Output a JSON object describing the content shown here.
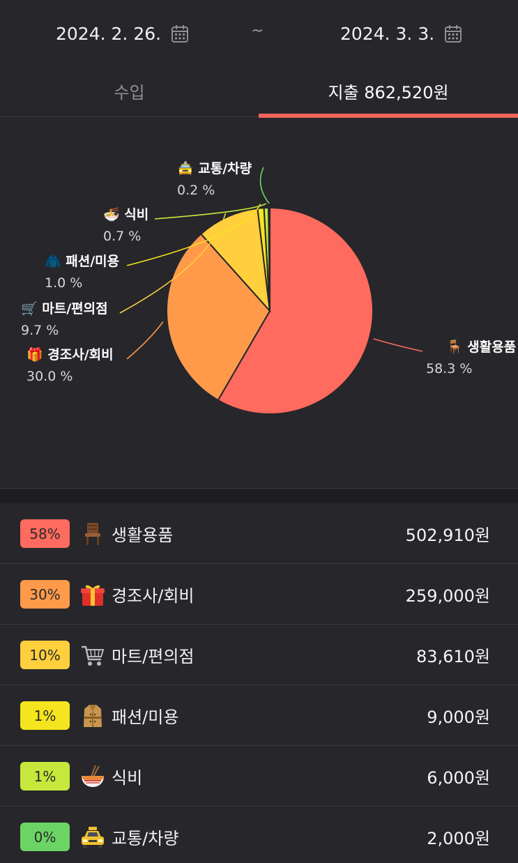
{
  "date_range": {
    "start": "2024. 2. 26.",
    "separator": "~",
    "end": "2024. 3. 3.",
    "icon": "calendar-icon"
  },
  "tabs": {
    "income_label": "수입",
    "expense_label": "지출 862,520원",
    "active": "expense"
  },
  "colors": {
    "background": "#26262b",
    "accent": "#f0645a"
  },
  "chart_data": {
    "type": "pie",
    "slices": [
      {
        "label": "생활용품",
        "value": 58.3,
        "pct_text": "58.3 %",
        "color": "#ff6b5e",
        "icon": "chair-icon"
      },
      {
        "label": "경조사/회비",
        "value": 30.0,
        "pct_text": "30.0 %",
        "color": "#ff9a4a",
        "icon": "gift-icon"
      },
      {
        "label": "마트/편의점",
        "value": 9.7,
        "pct_text": "9.7 %",
        "color": "#ffcf3d",
        "icon": "cart-icon"
      },
      {
        "label": "패션/미용",
        "value": 1.0,
        "pct_text": "1.0 %",
        "color": "#f5e51e",
        "icon": "coat-icon"
      },
      {
        "label": "식비",
        "value": 0.7,
        "pct_text": "0.7 %",
        "color": "#c6e83c",
        "icon": "noodle-bowl-icon"
      },
      {
        "label": "교통/차량",
        "value": 0.2,
        "pct_text": "0.2 %",
        "color": "#6cd464",
        "icon": "taxi-icon"
      }
    ]
  },
  "categories": [
    {
      "percent": "58%",
      "name": "생활용품",
      "amount": "502,910원",
      "color": "#ff6b5e",
      "icon": "chair-icon"
    },
    {
      "percent": "30%",
      "name": "경조사/회비",
      "amount": "259,000원",
      "color": "#ff9a4a",
      "icon": "gift-icon"
    },
    {
      "percent": "10%",
      "name": "마트/편의점",
      "amount": "83,610원",
      "color": "#ffcf3d",
      "icon": "cart-icon"
    },
    {
      "percent": "1%",
      "name": "패션/미용",
      "amount": "9,000원",
      "color": "#f5e51e",
      "icon": "coat-icon"
    },
    {
      "percent": "1%",
      "name": "식비",
      "amount": "6,000원",
      "color": "#c6e83c",
      "icon": "noodle-bowl-icon"
    },
    {
      "percent": "0%",
      "name": "교통/차량",
      "amount": "2,000원",
      "color": "#6cd464",
      "icon": "taxi-icon"
    }
  ]
}
